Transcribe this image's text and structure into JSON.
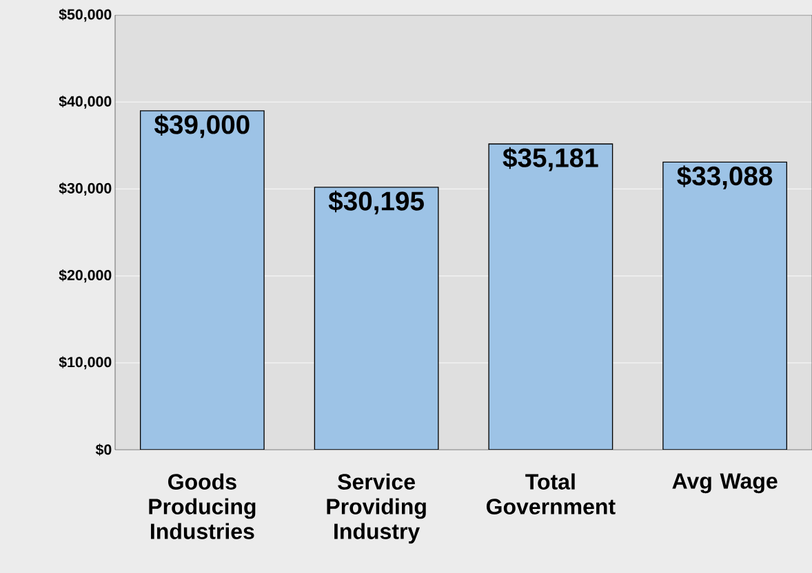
{
  "chart_data": {
    "type": "bar",
    "categories": [
      "Goods Producing Industries",
      "Service Providing Industry",
      "Total Government",
      "Avg Wage"
    ],
    "values": [
      39000,
      30195,
      35181,
      33088
    ],
    "value_labels": [
      "$39,000",
      "$30,195",
      "$35,181",
      "$33,088"
    ],
    "color": "#9dc3e6",
    "ylim": [
      0,
      50000
    ],
    "yticks": [
      {
        "value": 0,
        "label": "$0"
      },
      {
        "value": 10000,
        "label": "$10,000"
      },
      {
        "value": 20000,
        "label": "$20,000"
      },
      {
        "value": 30000,
        "label": "$30,000"
      },
      {
        "value": 40000,
        "label": "$40,000"
      },
      {
        "value": 50000,
        "label": "$50,000"
      }
    ],
    "grid": "y"
  }
}
